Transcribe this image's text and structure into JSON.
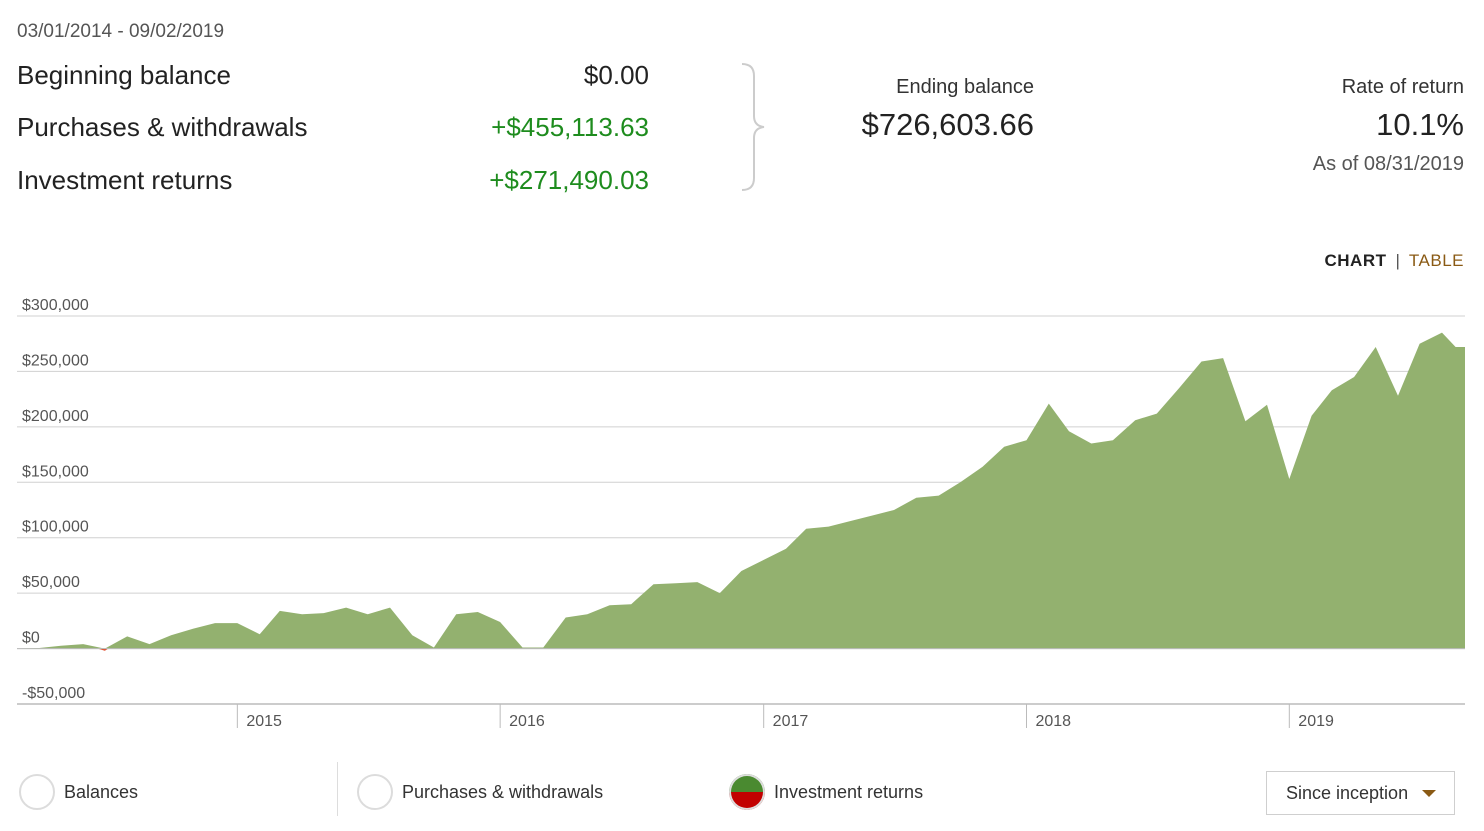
{
  "summary": {
    "date_range": "03/01/2014 - 09/02/2019",
    "rows": [
      {
        "label": "Beginning balance",
        "value": "$0.00",
        "positive": false
      },
      {
        "label": "Purchases & withdrawals",
        "value": "+$455,113.63",
        "positive": true
      },
      {
        "label": "Investment returns",
        "value": "+$271,490.03",
        "positive": true
      }
    ],
    "ending_label": "Ending balance",
    "ending_value": "$726,603.66",
    "ror_label": "Rate of return",
    "ror_value": "10.1%",
    "as_of": "As of 08/31/2019"
  },
  "view_toggle": {
    "chart": "CHART",
    "separator": "|",
    "table": "TABLE"
  },
  "colors": {
    "area": "#93b16f",
    "negative": "#e04b2a",
    "grid": "#d0d0d0",
    "axis_text": "#555555",
    "accent": "#8a5a14"
  },
  "chart_data": {
    "type": "area",
    "title": "",
    "xlabel": "",
    "ylabel": "",
    "ylim": [
      -50000,
      300000
    ],
    "yticks": [
      300000,
      250000,
      200000,
      150000,
      100000,
      50000,
      0,
      -50000
    ],
    "ytick_labels": [
      "$300,000",
      "$250,000",
      "$200,000",
      "$150,000",
      "$100,000",
      "$50,000",
      "$0",
      "-$50,000"
    ],
    "xticks": [
      "2015-01-01",
      "2016-01-01",
      "2017-01-01",
      "2018-01-01",
      "2019-01-01"
    ],
    "xtick_labels": [
      "2015",
      "2016",
      "2017",
      "2018",
      "2019"
    ],
    "x_range": [
      "2014-03-01",
      "2019-09-02"
    ],
    "grid": true,
    "series": [
      {
        "name": "Investment returns",
        "points": [
          [
            "2014-03-01",
            0
          ],
          [
            "2014-04-01",
            500
          ],
          [
            "2014-05-01",
            2500
          ],
          [
            "2014-06-01",
            4000
          ],
          [
            "2014-07-01",
            -2000
          ],
          [
            "2014-08-01",
            11000
          ],
          [
            "2014-09-01",
            4000
          ],
          [
            "2014-10-01",
            12000
          ],
          [
            "2014-11-01",
            18000
          ],
          [
            "2014-12-01",
            23000
          ],
          [
            "2015-01-01",
            23000
          ],
          [
            "2015-02-01",
            13000
          ],
          [
            "2015-03-01",
            34000
          ],
          [
            "2015-04-01",
            31000
          ],
          [
            "2015-05-01",
            32000
          ],
          [
            "2015-06-01",
            37000
          ],
          [
            "2015-07-01",
            31000
          ],
          [
            "2015-08-01",
            37000
          ],
          [
            "2015-09-01",
            12000
          ],
          [
            "2015-10-01",
            1000
          ],
          [
            "2015-11-01",
            31000
          ],
          [
            "2015-12-01",
            33000
          ],
          [
            "2016-01-01",
            24000
          ],
          [
            "2016-02-01",
            1000
          ],
          [
            "2016-03-01",
            1000
          ],
          [
            "2016-04-01",
            28000
          ],
          [
            "2016-05-01",
            31000
          ],
          [
            "2016-06-01",
            39000
          ],
          [
            "2016-07-01",
            40000
          ],
          [
            "2016-08-01",
            58000
          ],
          [
            "2016-09-01",
            59000
          ],
          [
            "2016-10-01",
            60000
          ],
          [
            "2016-11-01",
            50000
          ],
          [
            "2016-12-01",
            70000
          ],
          [
            "2017-01-01",
            80000
          ],
          [
            "2017-02-01",
            90000
          ],
          [
            "2017-03-01",
            108000
          ],
          [
            "2017-04-01",
            110000
          ],
          [
            "2017-05-01",
            115000
          ],
          [
            "2017-06-01",
            120000
          ],
          [
            "2017-07-01",
            125000
          ],
          [
            "2017-08-01",
            136000
          ],
          [
            "2017-09-01",
            138000
          ],
          [
            "2017-10-01",
            150000
          ],
          [
            "2017-11-01",
            164000
          ],
          [
            "2017-12-01",
            182000
          ],
          [
            "2018-01-01",
            188000
          ],
          [
            "2018-02-01",
            221000
          ],
          [
            "2018-03-01",
            196000
          ],
          [
            "2018-04-01",
            185000
          ],
          [
            "2018-05-01",
            188000
          ],
          [
            "2018-06-01",
            206000
          ],
          [
            "2018-07-01",
            212000
          ],
          [
            "2018-08-01",
            235000
          ],
          [
            "2018-09-01",
            259000
          ],
          [
            "2018-10-01",
            262000
          ],
          [
            "2018-11-01",
            205000
          ],
          [
            "2018-12-01",
            220000
          ],
          [
            "2019-01-01",
            153000
          ],
          [
            "2019-02-01",
            210000
          ],
          [
            "2019-03-01",
            233000
          ],
          [
            "2019-04-01",
            245000
          ],
          [
            "2019-05-01",
            272000
          ],
          [
            "2019-06-01",
            228000
          ],
          [
            "2019-07-01",
            275000
          ],
          [
            "2019-08-01",
            285000
          ],
          [
            "2019-08-20",
            272000
          ],
          [
            "2019-09-02",
            272000
          ]
        ]
      }
    ]
  },
  "legend": {
    "items": [
      {
        "label": "Balances",
        "selected": false
      },
      {
        "label": "Purchases & withdrawals",
        "selected": false
      },
      {
        "label": "Investment returns",
        "selected": true
      }
    ]
  },
  "period_select": {
    "value": "Since inception"
  }
}
